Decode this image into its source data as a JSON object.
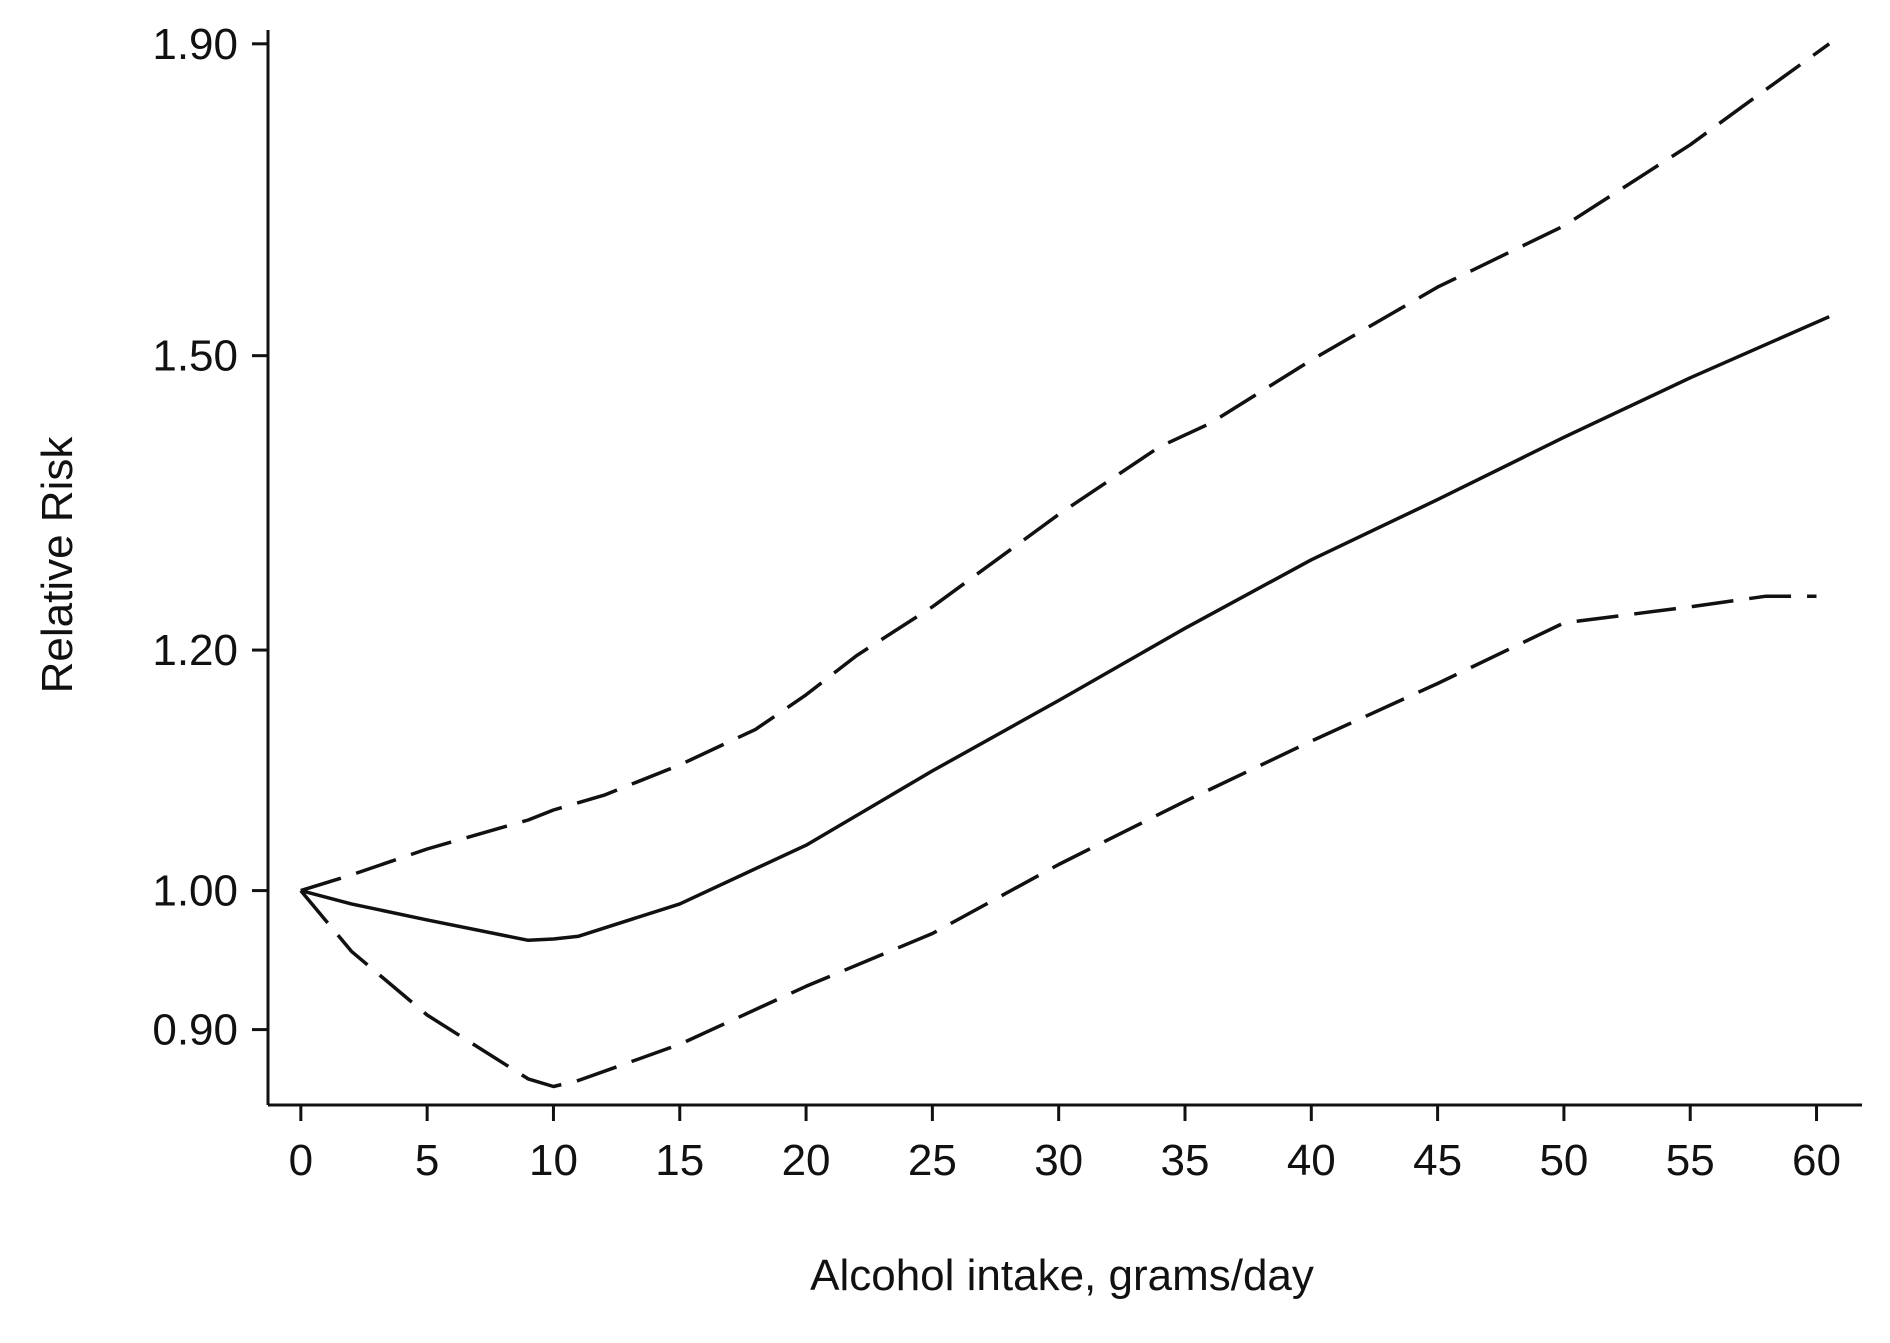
{
  "chart_data": {
    "type": "line",
    "title": "",
    "xlabel": "Alcohol intake, grams/day",
    "ylabel": "Relative Risk",
    "xlim": [
      -1.3,
      61.8
    ],
    "ylim": [
      0.85,
      1.92
    ],
    "y_scale": "log",
    "grid": false,
    "x_ticks": [
      "0",
      "5",
      "10",
      "15",
      "20",
      "25",
      "30",
      "35",
      "40",
      "45",
      "50",
      "55",
      "60"
    ],
    "y_ticks": [
      "0.90",
      "1.00",
      "1.20",
      "1.50",
      "1.90"
    ],
    "series": [
      {
        "style": "solid",
        "color": "#111111",
        "x": [
          0,
          2,
          5,
          9,
          10,
          11,
          15,
          20,
          25,
          30,
          35,
          40,
          45,
          50,
          55,
          60.5
        ],
        "y": [
          1.0,
          0.99,
          0.978,
          0.963,
          0.964,
          0.966,
          0.99,
          1.035,
          1.095,
          1.155,
          1.22,
          1.285,
          1.345,
          1.41,
          1.475,
          1.545
        ]
      },
      {
        "style": "dashed",
        "color": "#111111",
        "x": [
          0,
          2,
          5,
          9,
          10,
          12,
          15,
          18,
          20,
          22,
          25,
          30,
          34,
          36,
          40,
          45,
          50,
          55,
          57,
          60.5
        ],
        "y": [
          1.0,
          1.012,
          1.032,
          1.055,
          1.063,
          1.075,
          1.1,
          1.13,
          1.16,
          1.195,
          1.24,
          1.33,
          1.4,
          1.425,
          1.495,
          1.58,
          1.655,
          1.76,
          1.81,
          1.9
        ]
      },
      {
        "style": "dashed",
        "color": "#111111",
        "x": [
          0,
          2,
          5,
          9,
          10,
          11,
          15,
          20,
          25,
          30,
          35,
          40,
          45,
          50,
          55,
          58,
          60
        ],
        "y": [
          1.0,
          0.955,
          0.91,
          0.867,
          0.862,
          0.866,
          0.89,
          0.93,
          0.968,
          1.02,
          1.07,
          1.12,
          1.17,
          1.225,
          1.24,
          1.25,
          1.25
        ]
      }
    ]
  }
}
